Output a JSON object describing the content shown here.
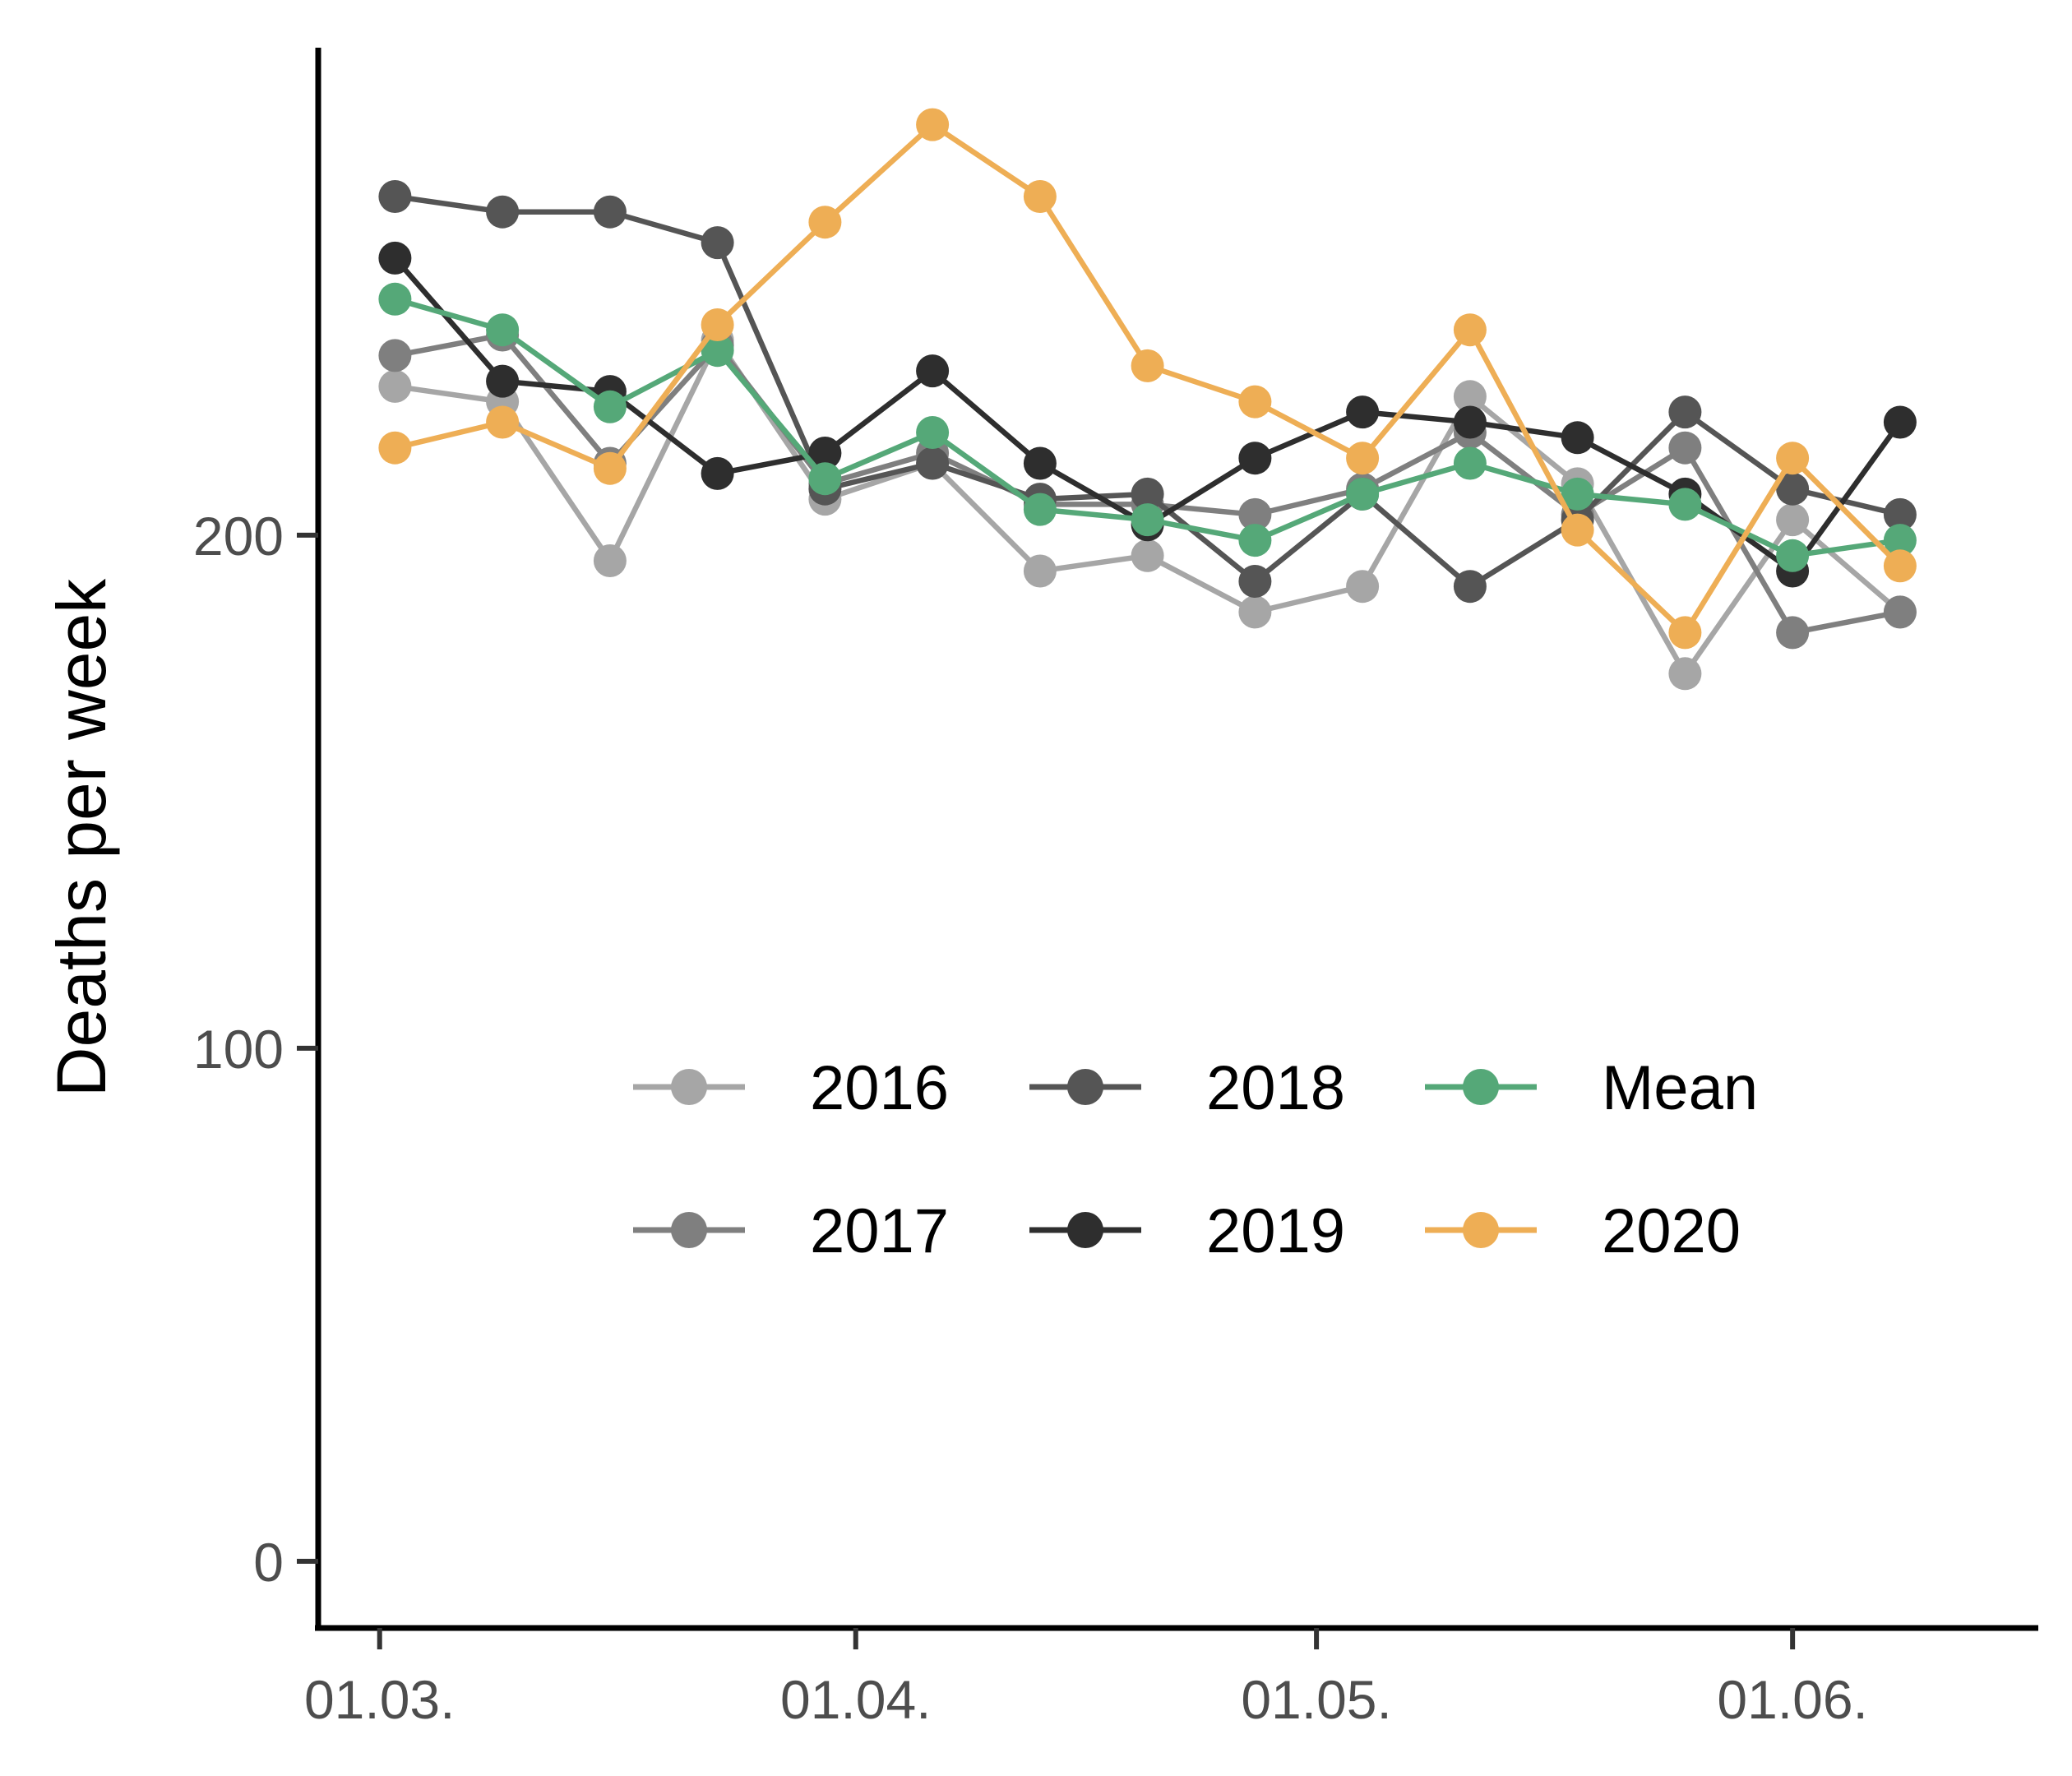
{
  "chart_data": {
    "type": "line",
    "title": "",
    "xlabel": "",
    "ylabel": "Deaths per week",
    "ylim": [
      -13,
      295
    ],
    "y_ticks": [
      0,
      100,
      200
    ],
    "y_tick_labels": [
      "0",
      "100",
      "200"
    ],
    "x_tick_labels": [
      "01.03.",
      "01.04.",
      "01.05.",
      "01.06."
    ],
    "x_tick_dates": [
      "2020-03-01",
      "2020-04-01",
      "2020-05-01",
      "2020-06-01"
    ],
    "x_range": [
      "2020-02-26",
      "2020-06-17"
    ],
    "x": [
      "2020-03-02",
      "2020-03-09",
      "2020-03-16",
      "2020-03-23",
      "2020-03-30",
      "2020-04-06",
      "2020-04-13",
      "2020-04-20",
      "2020-04-27",
      "2020-05-04",
      "2020-05-11",
      "2020-05-18",
      "2020-05-25",
      "2020-06-01",
      "2020-06-08"
    ],
    "grid": false,
    "legend_position": "center",
    "series": [
      {
        "name": "2016",
        "color": "#a6a6a6",
        "values": [
          229,
          226,
          195,
          238,
          207,
          214,
          193,
          196,
          185,
          190,
          227,
          210,
          173,
          203,
          185
        ]
      },
      {
        "name": "2017",
        "color": "#7f7f7f",
        "values": [
          235,
          239,
          214,
          237,
          210,
          216,
          206,
          206,
          204,
          209,
          220,
          204,
          217,
          181,
          185
        ]
      },
      {
        "name": "2018",
        "color": "#555555",
        "values": [
          266,
          263,
          263,
          257,
          209,
          214,
          207,
          208,
          191,
          208,
          190,
          203,
          224,
          209,
          204
        ]
      },
      {
        "name": "2019",
        "color": "#2e2e2e",
        "values": [
          254,
          230,
          228,
          212,
          216,
          232,
          214,
          202,
          215,
          224,
          222,
          219,
          208,
          193,
          222
        ]
      },
      {
        "name": "Mean",
        "color": "#55a878",
        "values": [
          246,
          240,
          225,
          236,
          211,
          220,
          205,
          203,
          199,
          208,
          214,
          208,
          206,
          196,
          199
        ]
      },
      {
        "name": "2020",
        "color": "#eeae55",
        "values": [
          217,
          222,
          213,
          241,
          261,
          280,
          266,
          233,
          226,
          215,
          240,
          201,
          181,
          215,
          194
        ]
      }
    ],
    "legend_order": [
      "2016",
      "2018",
      "Mean",
      "2017",
      "2019",
      "2020"
    ]
  }
}
